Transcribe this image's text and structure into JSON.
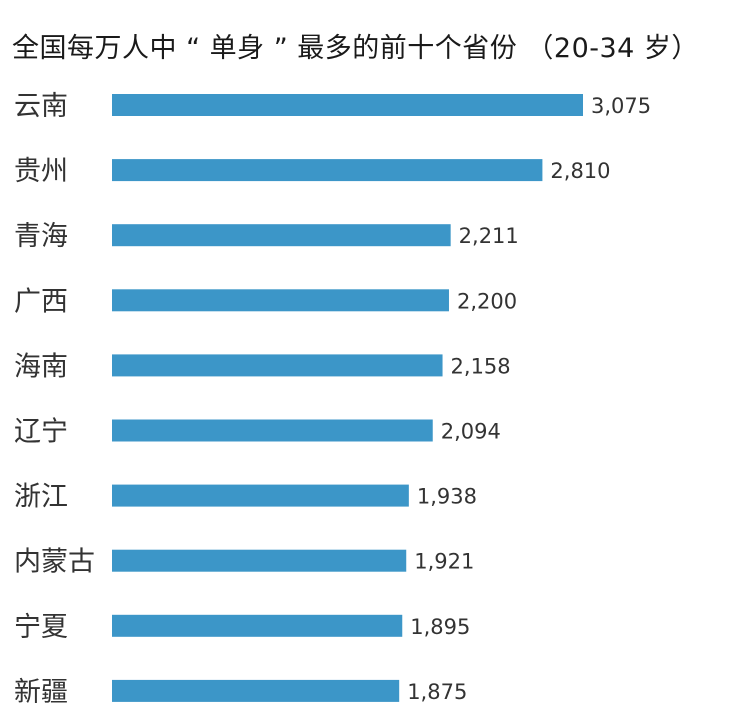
{
  "chart_data": {
    "type": "bar",
    "orientation": "horizontal",
    "title": "全国每万人中 “ 单身 ” 最多的前十个省份 （20-34 岁）",
    "categories": [
      "云南",
      "贵州",
      "青海",
      "广西",
      "海南",
      "辽宁",
      "浙江",
      "内蒙古",
      "宁夏",
      "新疆"
    ],
    "values": [
      3075,
      2810,
      2211,
      2200,
      2158,
      2094,
      1938,
      1921,
      1895,
      1875
    ],
    "value_labels": [
      "3,075",
      "2,810",
      "2,211",
      "2,200",
      "2,158",
      "2,094",
      "1,938",
      "1,921",
      "1,895",
      "1,875"
    ],
    "xlabel": "",
    "ylabel": "",
    "xlim": [
      0,
      3075
    ],
    "grid": false,
    "legend": "none",
    "colors": {
      "bar": "#3c96c8",
      "text": "#333333"
    }
  }
}
